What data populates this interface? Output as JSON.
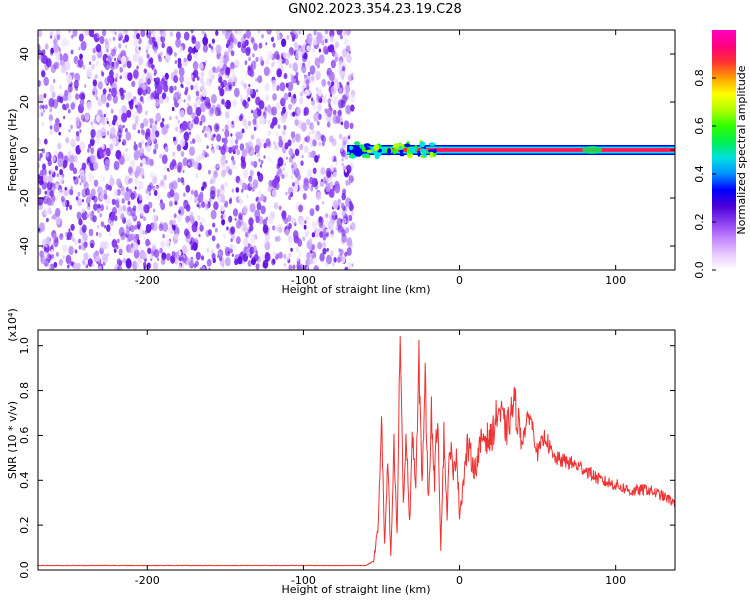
{
  "figure": {
    "title": "GN02.2023.354.23.19.C28"
  },
  "chart_data": [
    {
      "type": "heatmap",
      "title": "GN02.2023.354.23.19.C28",
      "xlabel": "Height of straight line (km)",
      "ylabel": "Frequency (Hz)",
      "xlim": [
        -270,
        138
      ],
      "ylim": [
        -50,
        50
      ],
      "x_ticks": [
        -200,
        -100,
        0,
        100
      ],
      "x_tick_labels": [
        "-200",
        "-100",
        "0",
        "100"
      ],
      "y_ticks": [
        -40,
        -20,
        0,
        20,
        40
      ],
      "y_tick_labels": [
        "-40",
        "-20",
        "0",
        "20",
        "40"
      ],
      "noise_region_x": [
        -270,
        -72
      ],
      "signal_line_frequency_hz": 0,
      "signal_start_x": -72,
      "colorbar": {
        "label": "Normalized spectral amplitude",
        "range": [
          0,
          1
        ],
        "ticks": [
          0.0,
          0.2,
          0.4,
          0.6,
          0.8
        ],
        "tick_labels": [
          "0.0",
          "0.2",
          "0.4",
          "0.6",
          "0.8"
        ],
        "colormap": [
          "#ffffff",
          "#e6c8ff",
          "#c184ff",
          "#8a3cf0",
          "#4b00d8",
          "#0000ff",
          "#0090ff",
          "#00e0e0",
          "#00f050",
          "#30ff00",
          "#b0ff00",
          "#ffff00",
          "#ffa000",
          "#ff3030",
          "#ff0080",
          "#ff00c0"
        ]
      },
      "grid": false
    },
    {
      "type": "line",
      "xlabel": "Height of straight line (km)",
      "ylabel": "SNR (10 * v/v)",
      "scale_label": "(x10⁴)",
      "xlim": [
        -270,
        138
      ],
      "ylim": [
        0,
        1.07
      ],
      "x_ticks": [
        -200,
        -100,
        0,
        100
      ],
      "x_tick_labels": [
        "-200",
        "-100",
        "0",
        "100"
      ],
      "y_ticks": [
        0.0,
        0.2,
        0.4,
        0.6,
        0.8,
        1.0
      ],
      "y_tick_labels": [
        "0.0",
        "0.2",
        "0.4",
        "0.6",
        "0.8",
        "1.0"
      ],
      "series": [
        {
          "color": "#ee3333",
          "x": [
            -270,
            -250,
            -200,
            -150,
            -100,
            -75,
            -60,
            -55,
            -52,
            -50,
            -48,
            -46,
            -44,
            -42,
            -40,
            -38,
            -36,
            -34,
            -32,
            -30,
            -28,
            -26,
            -24,
            -22,
            -20,
            -18,
            -16,
            -14,
            -12,
            -10,
            -8,
            -6,
            -4,
            -2,
            0,
            5,
            10,
            15,
            20,
            25,
            30,
            35,
            40,
            45,
            50,
            55,
            60,
            70,
            80,
            90,
            100,
            110,
            120,
            130,
            138
          ],
          "y": [
            0.02,
            0.02,
            0.02,
            0.02,
            0.02,
            0.02,
            0.02,
            0.04,
            0.2,
            0.7,
            0.1,
            0.48,
            0.05,
            0.55,
            0.15,
            1.07,
            0.3,
            0.6,
            0.2,
            0.62,
            0.35,
            0.92,
            0.4,
            0.85,
            0.3,
            0.7,
            0.4,
            0.72,
            0.1,
            0.6,
            0.25,
            0.58,
            0.4,
            0.55,
            0.25,
            0.55,
            0.45,
            0.6,
            0.58,
            0.72,
            0.62,
            0.75,
            0.58,
            0.7,
            0.52,
            0.6,
            0.5,
            0.48,
            0.45,
            0.4,
            0.38,
            0.35,
            0.36,
            0.33,
            0.3
          ]
        }
      ],
      "grid": false
    }
  ]
}
